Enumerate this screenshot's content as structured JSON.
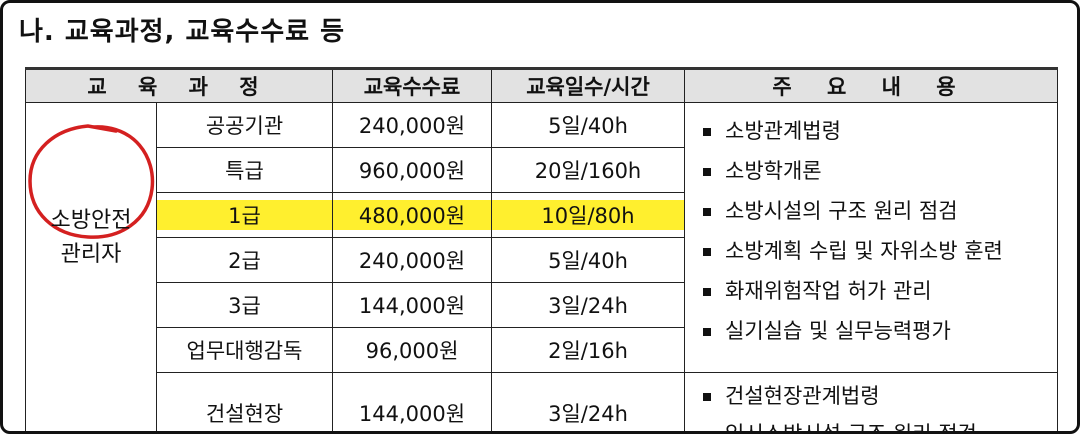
{
  "heading": "나. 교육과정, 교육수수료 등",
  "table": {
    "headers": {
      "course": "교 육 과 정",
      "fee": "교육수수료",
      "days": "교육일수/시간",
      "content": "주 요 내 용"
    },
    "category": {
      "line1": "소방안전",
      "line2": "관리자"
    },
    "rows": [
      {
        "name": "공공기관",
        "fee": "240,000원",
        "days": "5일/40h"
      },
      {
        "name": "특급",
        "fee": "960,000원",
        "days": "20일/160h"
      },
      {
        "name": "1급",
        "fee": "480,000원",
        "days": "10일/80h",
        "highlighted": true
      },
      {
        "name": "2급",
        "fee": "240,000원",
        "days": "5일/40h"
      },
      {
        "name": "3급",
        "fee": "144,000원",
        "days": "3일/24h"
      },
      {
        "name": "업무대행감독",
        "fee": "96,000원",
        "days": "2일/16h"
      },
      {
        "name": "건설현장",
        "fee": "144,000원",
        "days": "3일/24h"
      }
    ],
    "contents_main": [
      "소방관계법령",
      "소방학개론",
      "소방시설의 구조 원리 점검",
      "소방계획 수립 및 자위소방 훈련",
      "화재위험작업 허가 관리",
      "실기실습 및 실무능력평가"
    ],
    "contents_construction": [
      "건설현장관계법령",
      "임시소방시설 구조 원리 점검"
    ]
  },
  "colors": {
    "highlight": "#ffef2e",
    "circle": "#d42020",
    "header_bg": "#e2e2e2"
  }
}
